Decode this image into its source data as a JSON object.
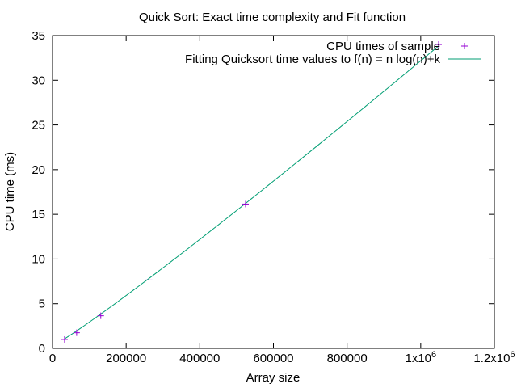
{
  "chart_data": {
    "type": "line",
    "title": "Quick Sort: Exact time complexity and Fit function",
    "xlabel": "Array size",
    "ylabel": "CPU time (ms)",
    "xlim": [
      0,
      1200000
    ],
    "ylim": [
      0,
      35
    ],
    "x_ticks": [
      {
        "value": 0,
        "label": "0"
      },
      {
        "value": 200000,
        "label": "200000"
      },
      {
        "value": 400000,
        "label": "400000"
      },
      {
        "value": 600000,
        "label": "600000"
      },
      {
        "value": 800000,
        "label": "800000"
      },
      {
        "value": 1000000,
        "label": "1x10",
        "exp": "6"
      },
      {
        "value": 1200000,
        "label": "1.2x10",
        "exp": "6"
      }
    ],
    "y_ticks": [
      0,
      5,
      10,
      15,
      20,
      25,
      30,
      35
    ],
    "grid": false,
    "legend_position": "top-right",
    "series": [
      {
        "name": "CPU times of sample",
        "kind": "points",
        "marker": "plus",
        "color": "#9400d3",
        "x": [
          32768,
          65536,
          131072,
          262144,
          524288,
          1048576
        ],
        "y": [
          1.0,
          1.75,
          3.65,
          7.65,
          16.15,
          34.0
        ]
      },
      {
        "name": "Fitting Quicksort time values to f(n) = n log(n)+k",
        "kind": "line",
        "color": "#009e73",
        "model": "n log(n) + k",
        "x": [
          32768,
          1048576
        ],
        "fit_a": 2.309e-06,
        "fit_k": 0.28
      }
    ]
  }
}
